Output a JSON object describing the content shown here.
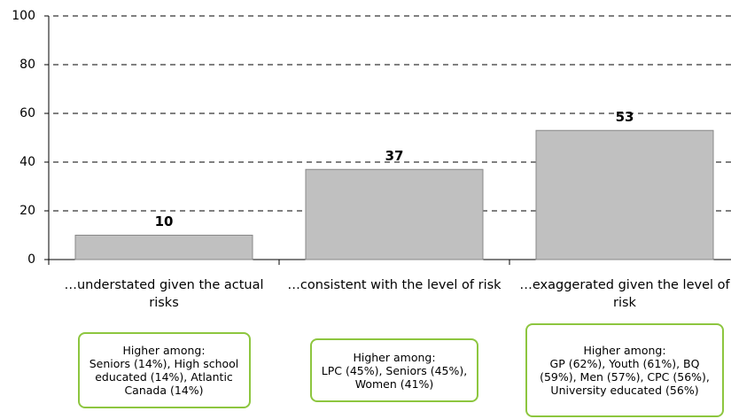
{
  "chart_data": {
    "type": "bar",
    "categories": [
      "…understated given the actual risks",
      "…consistent with the level of risk",
      "…exaggerated given the level of risk"
    ],
    "values": [
      10,
      37,
      53
    ],
    "color": "#c0c0c0",
    "ylim": [
      0,
      100
    ],
    "yticks": [
      0,
      20,
      40,
      60,
      80,
      100
    ],
    "grid": true,
    "annotations": [
      {
        "heading": "Higher among:",
        "text": "Seniors (14%), High school educated (14%), Atlantic Canada (14%)"
      },
      {
        "heading": "Higher among:",
        "text": "LPC (45%), Seniors (45%), Women (41%)"
      },
      {
        "heading": "Higher among:",
        "text": "GP (62%), Youth (61%), BQ (59%), Men (57%), CPC (56%), University educated (56%)"
      }
    ]
  }
}
